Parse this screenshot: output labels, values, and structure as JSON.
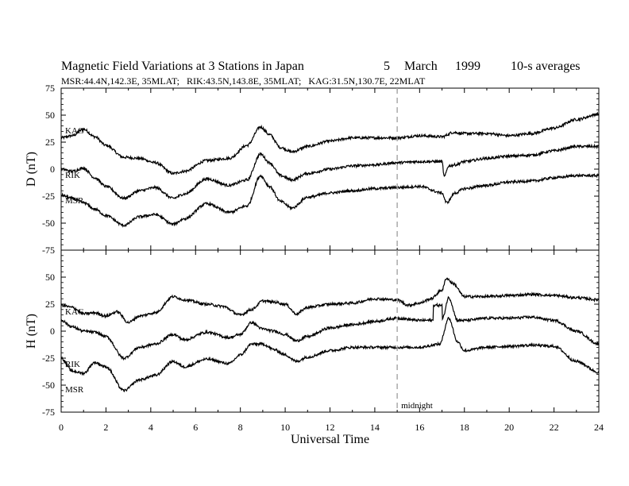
{
  "chart_data": {
    "type": "line",
    "title": "Magnetic Field Variations at 3 Stations in Japan",
    "date": {
      "day": "5",
      "month": "March",
      "year": "1999"
    },
    "averaging": "10-s averages",
    "subtitle": "MSR:44.4N,142.3E, 35MLAT;   RIK:43.5N,143.8E, 35MLAT;   KAG:31.5N,130.7E, 22MLAT",
    "xlabel": "Universal Time",
    "xlim": [
      0,
      24
    ],
    "xticks": [
      "0",
      "2",
      "4",
      "6",
      "8",
      "10",
      "12",
      "14",
      "16",
      "18",
      "20",
      "22",
      "24"
    ],
    "grid": false,
    "marker": {
      "x": 15,
      "label": "midnight",
      "style": "dashed",
      "color": "#aaaaaa"
    },
    "panels": [
      {
        "ylabel": "D (nT)",
        "ylim": [
          -75,
          75
        ],
        "yticks": [
          "75",
          "50",
          "25",
          "0",
          "-25",
          "-50",
          "-75"
        ],
        "series": [
          {
            "name": "KAG",
            "x": [
              0,
              0.5,
              1.0,
              1.5,
              2.0,
              2.8,
              3.5,
              4.2,
              5.0,
              5.5,
              6.5,
              7.5,
              8.3,
              8.9,
              9.3,
              9.8,
              10.3,
              11.0,
              12.0,
              13.0,
              14.0,
              15.0,
              16.0,
              17.0,
              17.5,
              18.0,
              19.0,
              20.0,
              21.0,
              22.0,
              23.0,
              24.0
            ],
            "values": [
              29,
              31,
              37,
              30,
              22,
              11,
              10,
              6,
              -4,
              -2,
              8,
              10,
              22,
              39,
              32,
              20,
              16,
              21,
              26,
              29,
              29,
              29,
              31,
              30,
              34,
              33,
              33,
              31,
              33,
              38,
              46,
              51
            ]
          },
          {
            "name": "RIK",
            "x": [
              0,
              0.5,
              1.0,
              1.5,
              2.0,
              2.8,
              3.5,
              4.2,
              5.0,
              5.5,
              6.5,
              7.5,
              8.3,
              8.9,
              9.3,
              9.8,
              10.3,
              11.0,
              12.0,
              13.0,
              14.0,
              15.0,
              16.0,
              16.8,
              17.0,
              17.1,
              17.3,
              17.6,
              18.0,
              19.0,
              20.0,
              21.0,
              22.0,
              23.0,
              24.0
            ],
            "values": [
              0,
              -2,
              1,
              -8,
              -16,
              -27,
              -20,
              -17,
              -27,
              -23,
              -9,
              -15,
              -10,
              14,
              6,
              -6,
              -10,
              -4,
              0,
              3,
              4,
              6,
              7,
              7,
              7,
              -7,
              3,
              4,
              7,
              10,
              12,
              13,
              17,
              21,
              21
            ]
          },
          {
            "name": "MSR",
            "x": [
              0,
              0.5,
              1.0,
              1.5,
              2.0,
              2.8,
              3.5,
              4.2,
              5.0,
              5.5,
              6.5,
              7.5,
              8.3,
              8.9,
              9.3,
              9.8,
              10.3,
              11.0,
              12.0,
              13.0,
              14.0,
              15.0,
              16.0,
              17.0,
              17.2,
              17.6,
              18.0,
              19.0,
              20.0,
              21.0,
              22.0,
              23.0,
              24.0
            ],
            "values": [
              -24,
              -27,
              -31,
              -37,
              -43,
              -52,
              -44,
              -42,
              -51,
              -46,
              -32,
              -40,
              -34,
              -6,
              -16,
              -30,
              -36,
              -26,
              -22,
              -20,
              -18,
              -17,
              -16,
              -22,
              -31,
              -22,
              -18,
              -15,
              -12,
              -11,
              -8,
              -6,
              -6
            ]
          }
        ]
      },
      {
        "ylabel": "H (nT)",
        "ylim": [
          -75,
          75
        ],
        "yticks": [
          "50",
          "25",
          "0",
          "-25",
          "-50",
          "-75"
        ],
        "series": [
          {
            "name": "KAG",
            "x": [
              0,
              0.5,
              1.0,
              1.5,
              2.0,
              2.5,
              3.0,
              3.5,
              4.2,
              5.0,
              5.5,
              6.5,
              7.2,
              8.0,
              8.5,
              9.0,
              9.5,
              10.0,
              10.5,
              11.0,
              12.0,
              13.0,
              14.0,
              15.0,
              15.5,
              16.0,
              16.5,
              17.0,
              17.2,
              17.5,
              18.0,
              19.0,
              20.0,
              21.0,
              22.0,
              23.0,
              24.0
            ],
            "values": [
              24,
              22,
              16,
              17,
              14,
              18,
              8,
              14,
              17,
              32,
              29,
              25,
              23,
              15,
              20,
              28,
              27,
              25,
              16,
              22,
              25,
              26,
              30,
              29,
              24,
              26,
              30,
              38,
              49,
              44,
              32,
              32,
              33,
              34,
              33,
              31,
              29
            ]
          },
          {
            "name": "RIK",
            "x": [
              0,
              0.5,
              1.0,
              1.5,
              2.0,
              2.8,
              3.5,
              4.2,
              5.0,
              5.5,
              6.5,
              7.5,
              8.0,
              8.5,
              9.0,
              9.5,
              10.0,
              10.5,
              11.0,
              12.0,
              13.0,
              14.0,
              15.0,
              16.0,
              16.6,
              16.61,
              17.0,
              17.01,
              17.3,
              17.7,
              18.0,
              19.0,
              20.0,
              21.0,
              22.0,
              23.0,
              24.0
            ],
            "values": [
              10,
              4,
              0,
              -1,
              -5,
              -25,
              -15,
              -12,
              -3,
              -8,
              -1,
              -6,
              -3,
              8,
              2,
              0,
              -3,
              -9,
              -5,
              3,
              6,
              9,
              12,
              10,
              10,
              24,
              24,
              11,
              31,
              10,
              10,
              12,
              12,
              13,
              10,
              0,
              -12
            ]
          },
          {
            "name": "MSR",
            "x": [
              0,
              0.5,
              1.0,
              1.5,
              2.0,
              2.8,
              3.5,
              4.2,
              5.0,
              5.5,
              6.5,
              7.5,
              8.0,
              8.5,
              9.0,
              9.5,
              10.0,
              10.5,
              11.0,
              12.0,
              13.0,
              14.0,
              15.0,
              16.0,
              16.9,
              17.3,
              17.7,
              18.0,
              19.0,
              20.0,
              21.0,
              22.0,
              23.0,
              24.0
            ],
            "values": [
              -25,
              -37,
              -39,
              -29,
              -33,
              -55,
              -45,
              -41,
              -28,
              -33,
              -26,
              -30,
              -22,
              -12,
              -12,
              -17,
              -22,
              -28,
              -24,
              -18,
              -15,
              -15,
              -15,
              -15,
              -12,
              12,
              -10,
              -18,
              -15,
              -14,
              -13,
              -14,
              -28,
              -38
            ]
          }
        ]
      }
    ]
  }
}
